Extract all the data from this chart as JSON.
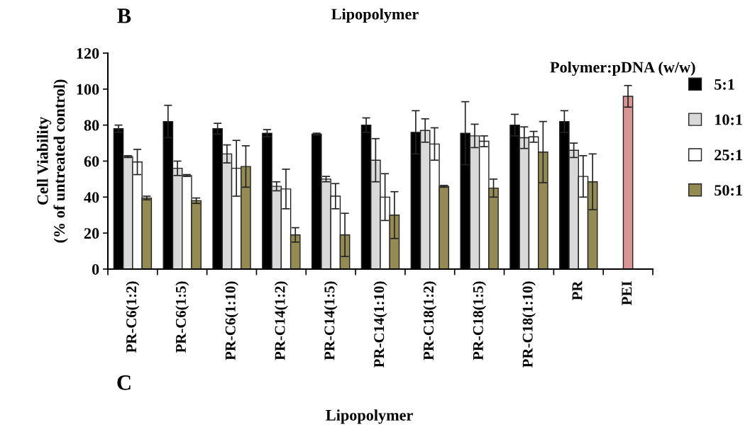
{
  "chart_data": {
    "type": "bar",
    "title": "Lipopolymer",
    "xlabel": "Lipopolymer",
    "ylabel": "Cell Viability\n(% of untreated control)",
    "legend_title": "Polymer:pDNA (w/w)",
    "annotations": [
      "B",
      "C"
    ],
    "categories": [
      "PR-C6(1:2)",
      "PR-C6(1:5)",
      "PR-C6(1:10)",
      "PR-C14(1:2)",
      "PR-C14(1:5)",
      "PR-C14(1:10)",
      "PR-C18(1:2)",
      "PR-C18(1:5)",
      "PR-C18(1:10)",
      "PR",
      "PEI"
    ],
    "ylim": [
      0,
      120
    ],
    "yticks": [
      0,
      20,
      40,
      60,
      80,
      100,
      120
    ],
    "grid": false,
    "legend": "top right",
    "series": [
      {
        "name": "5:1",
        "color": "#000000",
        "values": [
          78,
          82,
          78,
          75.5,
          75,
          80,
          76,
          75.5,
          80,
          82,
          null
        ],
        "errors": [
          2,
          9,
          3,
          2,
          0.5,
          4,
          12,
          17.5,
          6,
          6,
          null
        ]
      },
      {
        "name": "10:1",
        "color": "#d9d9d9",
        "values": [
          62.5,
          56,
          64,
          46,
          50,
          60.5,
          77,
          74,
          73,
          66,
          null
        ],
        "errors": [
          0.5,
          4,
          5,
          2.5,
          1.5,
          12,
          6.5,
          6.5,
          6,
          4,
          null
        ]
      },
      {
        "name": "25:1",
        "color": "#ffffff",
        "values": [
          59.5,
          52,
          56,
          44.5,
          40.5,
          40,
          69.5,
          71,
          73.5,
          51.5,
          null
        ],
        "errors": [
          7,
          0.5,
          15.5,
          11,
          7,
          13,
          9,
          3,
          3,
          11.5,
          null
        ]
      },
      {
        "name": "50:1",
        "color": "#948a54",
        "values": [
          39.5,
          38,
          57,
          19,
          19,
          30,
          46,
          45,
          65,
          48.5,
          null
        ],
        "errors": [
          1,
          1.5,
          11.5,
          4,
          12,
          13,
          0.5,
          5,
          17,
          15.5,
          null
        ]
      },
      {
        "color": "#d99594",
        "values": [
          null,
          null,
          null,
          null,
          null,
          null,
          null,
          null,
          null,
          null,
          96
        ],
        "errors": [
          null,
          null,
          null,
          null,
          null,
          null,
          null,
          null,
          null,
          null,
          6
        ]
      }
    ]
  }
}
